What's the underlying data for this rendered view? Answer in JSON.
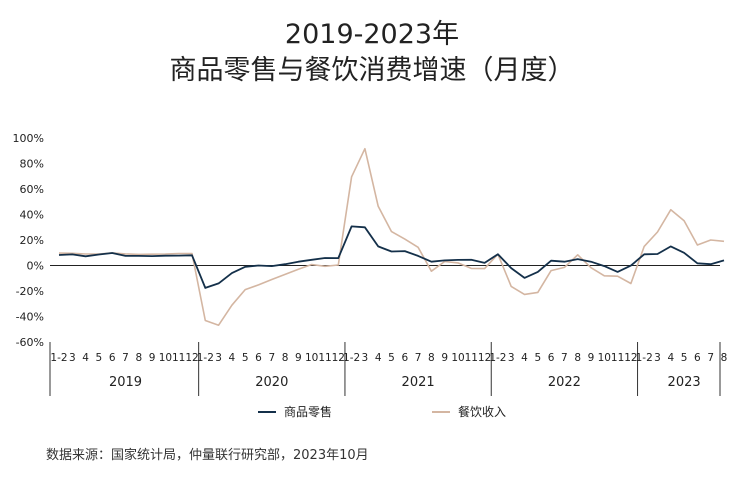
{
  "title_line1": "2019-2023年",
  "title_line2": "商品零售与餐饮消费增速（月度）",
  "source": "数据来源：国家统计局，仲量联行研究部，2023年10月",
  "colors": {
    "retail": "#14304a",
    "catering": "#d4b6a2",
    "axis": "#222222"
  },
  "chart_data": {
    "type": "line",
    "ylim": [
      -60,
      100
    ],
    "yticks": [
      "-60%",
      "-40%",
      "-20%",
      "0%",
      "20%",
      "40%",
      "60%",
      "80%",
      "100%"
    ],
    "ytick_values": [
      -60,
      -40,
      -20,
      0,
      20,
      40,
      60,
      80,
      100
    ],
    "years": [
      {
        "label": "2019",
        "months": [
          "1-2",
          "3",
          "4",
          "5",
          "6",
          "7",
          "8",
          "9",
          "10",
          "11",
          "12"
        ]
      },
      {
        "label": "2020",
        "months": [
          "1-2",
          "3",
          "4",
          "5",
          "6",
          "7",
          "8",
          "9",
          "10",
          "11",
          "12"
        ]
      },
      {
        "label": "2021",
        "months": [
          "1-2",
          "3",
          "4",
          "5",
          "6",
          "7",
          "8",
          "9",
          "10",
          "11",
          "12"
        ]
      },
      {
        "label": "2022",
        "months": [
          "1-2",
          "3",
          "4",
          "5",
          "6",
          "7",
          "8",
          "9",
          "10",
          "11",
          "12"
        ]
      },
      {
        "label": "2023",
        "months": [
          "1-2",
          "3",
          "4",
          "5",
          "6",
          "7",
          "8"
        ]
      }
    ],
    "legend_position": "bottom",
    "series": [
      {
        "name": "商品零售",
        "values": [
          8.2,
          8.7,
          7.2,
          8.6,
          9.8,
          7.5,
          7.5,
          7.4,
          7.7,
          7.8,
          8.0,
          -17.6,
          -14.0,
          -6.0,
          -1.0,
          0.0,
          -0.5,
          1.0,
          3.0,
          4.5,
          5.9,
          5.8,
          30.7,
          30.0,
          15.0,
          11.0,
          11.3,
          7.5,
          3.0,
          4.0,
          4.4,
          4.5,
          2.0,
          8.9,
          -2.0,
          -9.7,
          -5.0,
          3.8,
          3.0,
          5.0,
          3.0,
          -0.5,
          -5.0,
          -0.1,
          8.8,
          9.0,
          15.0,
          10.0,
          1.7,
          1.0,
          4.0
        ]
      },
      {
        "name": "餐饮收入",
        "values": [
          9.7,
          9.6,
          9.0,
          9.0,
          9.9,
          9.1,
          8.7,
          8.9,
          9.0,
          9.4,
          9.4,
          -43.1,
          -46.8,
          -31.1,
          -18.9,
          -15.2,
          -11.0,
          -7.0,
          -2.9,
          0.8,
          -0.6,
          0.4,
          69.6,
          91.6,
          46.4,
          26.6,
          20.7,
          14.3,
          -4.5,
          3.1,
          2.0,
          -2.3,
          -2.4,
          8.9,
          -16.4,
          -22.7,
          -21.1,
          -4.0,
          -1.5,
          8.4,
          -1.7,
          -8.1,
          -8.4,
          -14.1,
          15.0,
          26.3,
          43.8,
          35.1,
          16.1,
          20.0,
          19.0
        ]
      }
    ]
  },
  "legend": [
    {
      "label": "商品零售",
      "color": "#14304a"
    },
    {
      "label": "餐饮收入",
      "color": "#d4b6a2"
    }
  ]
}
